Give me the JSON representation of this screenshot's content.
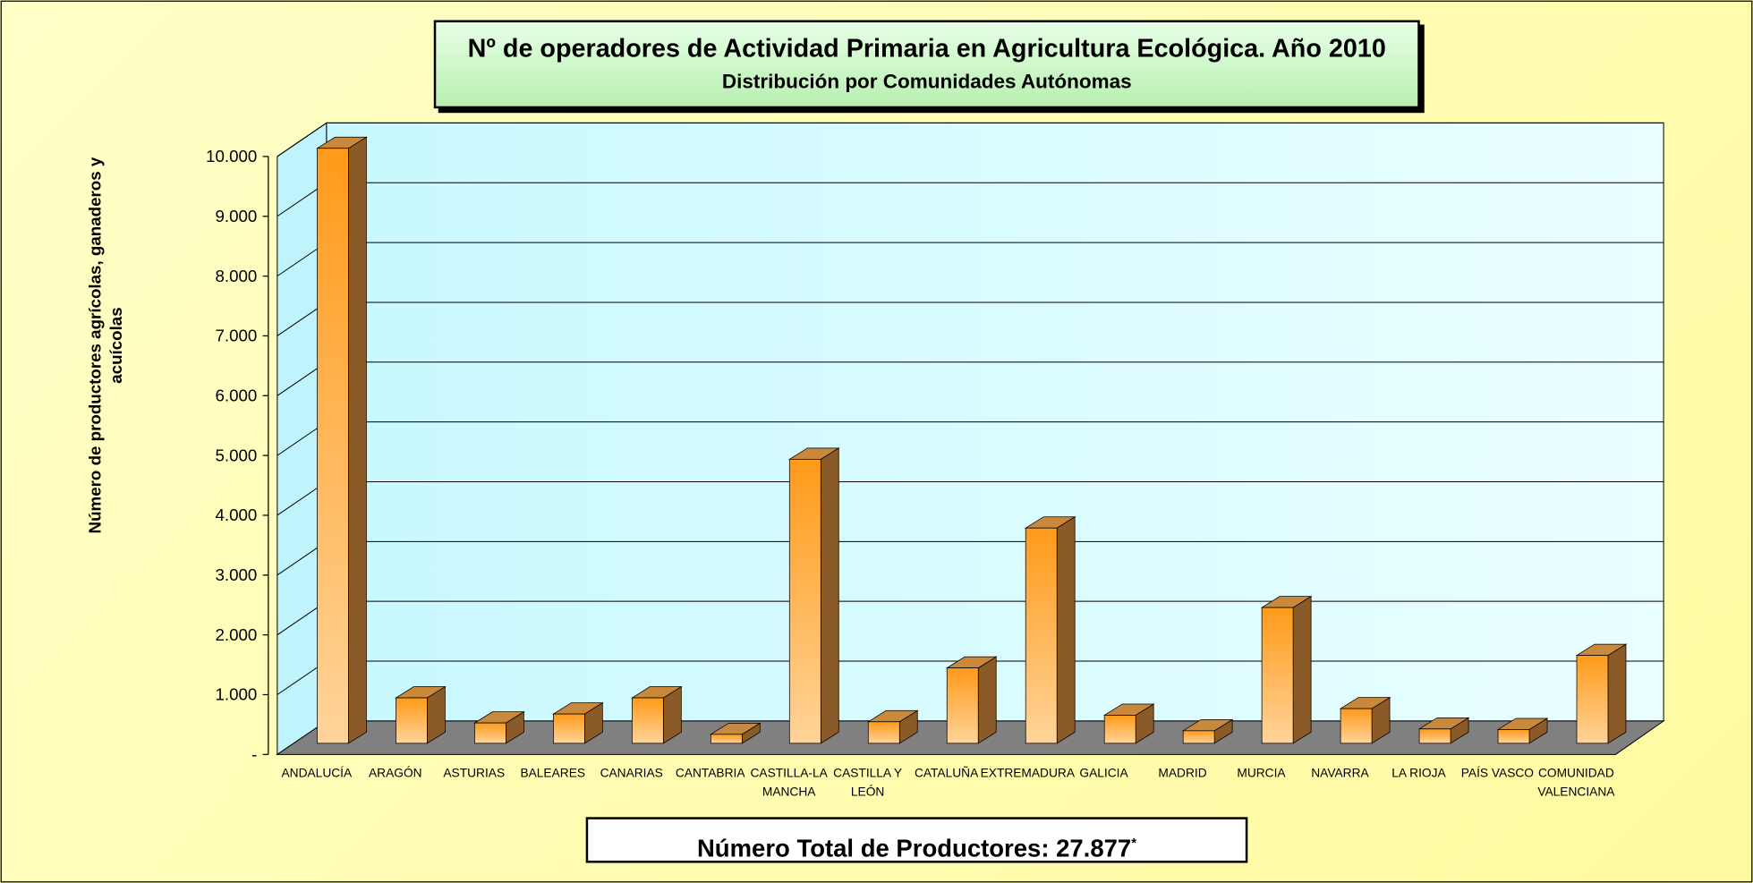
{
  "chart_data": {
    "type": "bar3d",
    "title": "Nº de operadores de Actividad Primaria en Agricultura Ecológica. Año 2010",
    "subtitle": "Distribución por Comunidades Autónomas",
    "ylabel": "Número de productores agrícolas, ganaderos y acuícolas",
    "categories": [
      "ANDALUCÍA",
      "ARAGÓN",
      "ASTURIAS",
      "BALEARES",
      "CANARIAS",
      "CANTABRIA",
      "CASTILLA-LA MANCHA",
      "CASTILLA Y LEÓN",
      "CATALUÑA",
      "EXTREMADURA",
      "GALICIA",
      "MADRID",
      "MURCIA",
      "NAVARRA",
      "LA RIOJA",
      "PAÍS VASCO",
      "COMUNIDAD VALENCIANA"
    ],
    "values": [
      9950,
      760,
      340,
      490,
      760,
      150,
      4750,
      360,
      1260,
      3600,
      470,
      210,
      2270,
      580,
      240,
      230,
      1470
    ],
    "color": "#ff9933",
    "ylim": [
      0,
      10000
    ],
    "yticks": [
      {
        "value": 0,
        "label": "-"
      },
      {
        "value": 1000,
        "label": "1.000"
      },
      {
        "value": 2000,
        "label": "2.000"
      },
      {
        "value": 3000,
        "label": "3.000"
      },
      {
        "value": 4000,
        "label": "4.000"
      },
      {
        "value": 5000,
        "label": "5.000"
      },
      {
        "value": 6000,
        "label": "6.000"
      },
      {
        "value": 7000,
        "label": "7.000"
      },
      {
        "value": 8000,
        "label": "8.000"
      },
      {
        "value": 9000,
        "label": "9.000"
      },
      {
        "value": 10000,
        "label": "10.000"
      }
    ],
    "grid": true,
    "annotation": "Número Total de Productores: 27.877",
    "annotation_mark": "*"
  }
}
